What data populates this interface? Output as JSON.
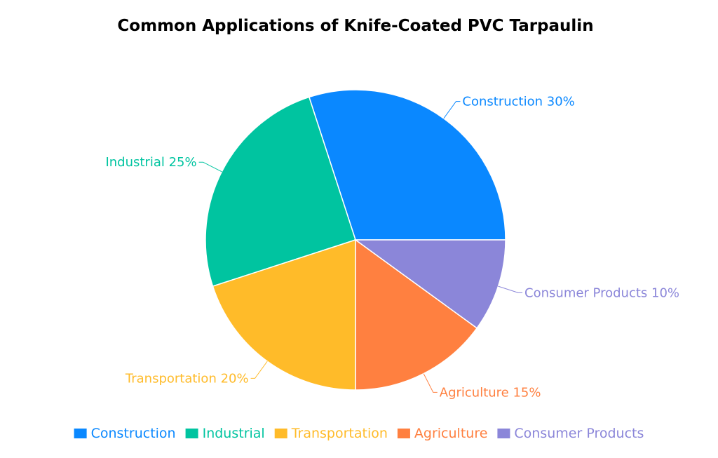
{
  "chart_data": {
    "type": "pie",
    "title": "Common Applications of Knife-Coated PVC Tarpaulin",
    "slices": [
      {
        "label": "Construction",
        "value": 30,
        "color": "#0a88ff",
        "slice_label": "Construction 30%"
      },
      {
        "label": "Industrial",
        "value": 25,
        "color": "#00c4a0",
        "slice_label": "Industrial 25%"
      },
      {
        "label": "Transportation",
        "value": 20,
        "color": "#ffbb29",
        "slice_label": "Transportation 20%"
      },
      {
        "label": "Agriculture",
        "value": 15,
        "color": "#ff8040",
        "slice_label": "Agriculture 15%"
      },
      {
        "label": "Consumer Products",
        "value": 10,
        "color": "#8b86d9",
        "slice_label": "Consumer Products 10%"
      }
    ],
    "legend_position": "bottom",
    "start": "3 o'clock, counter-clockwise"
  }
}
